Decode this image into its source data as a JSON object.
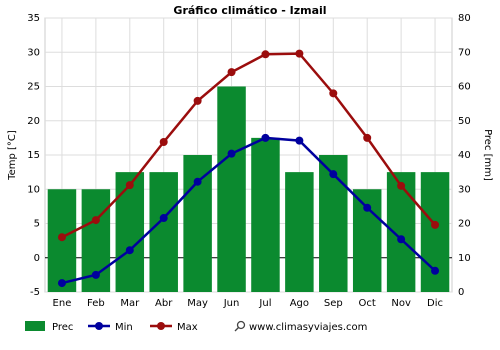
{
  "chart_data": {
    "type": "combo",
    "title": "Gráfico climático - Izmail",
    "y_label": "Temp [°C]",
    "y2_label": "Prec [mm]",
    "categories": [
      "Ene",
      "Feb",
      "Mar",
      "Abr",
      "May",
      "Jun",
      "Jul",
      "Ago",
      "Sep",
      "Oct",
      "Nov",
      "Dic"
    ],
    "series": [
      {
        "name": "Prec",
        "type": "bar",
        "axis": "y2",
        "color": "#0b8a2f",
        "values": [
          30,
          30,
          35,
          35,
          40,
          60,
          45,
          35,
          40,
          30,
          35,
          35
        ]
      },
      {
        "name": "Min",
        "type": "line",
        "color": "#00009e",
        "values": [
          -3.7,
          -2.5,
          1.1,
          5.8,
          11.1,
          15.2,
          17.5,
          17.1,
          12.2,
          7.3,
          2.7,
          -1.9
        ]
      },
      {
        "name": "Max",
        "type": "line",
        "color": "#9b0d0d",
        "values": [
          3.0,
          5.5,
          10.6,
          16.9,
          22.9,
          27.1,
          29.7,
          29.8,
          24.0,
          17.5,
          10.5,
          4.8
        ]
      }
    ],
    "ylim": [
      -5,
      35
    ],
    "yticks": [
      -5,
      0,
      5,
      10,
      15,
      20,
      25,
      30,
      35
    ],
    "y2lim": [
      0,
      80
    ],
    "y2ticks": [
      0,
      10,
      20,
      30,
      40,
      50,
      60,
      70,
      80
    ],
    "grid": true,
    "watermark": "www.climasyviajes.com"
  }
}
